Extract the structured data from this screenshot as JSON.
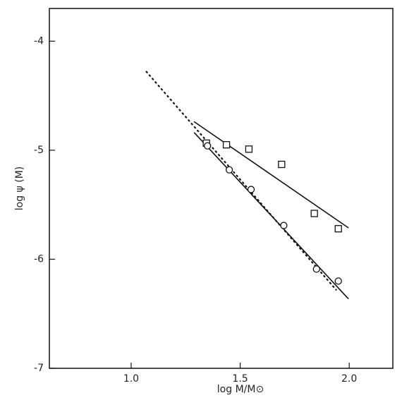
{
  "chart_data": {
    "type": "scatter",
    "x_label": "log M/M⊙",
    "y_label": "log ψ (M)",
    "xlim": [
      0.625,
      2.2
    ],
    "ylim": [
      -7,
      -3.7
    ],
    "xticks": [
      {
        "value": 1,
        "label": "1.0"
      },
      1.5,
      {
        "value": 2,
        "label": "2.0"
      }
    ],
    "yticks": [
      -4,
      -5,
      -6,
      -7
    ],
    "color": "#111111",
    "series": [
      {
        "marker": "square",
        "x": [
          1.345,
          1.437,
          1.54,
          1.69,
          1.84,
          1.95
        ],
        "values": [
          -4.935,
          -4.95,
          -4.99,
          -5.13,
          -5.58,
          -5.72
        ]
      },
      {
        "marker": "circle",
        "x": [
          1.35,
          1.45,
          1.55,
          1.7,
          1.85,
          1.95
        ],
        "values": [
          -4.96,
          -5.18,
          -5.36,
          -5.69,
          -6.09,
          -6.2
        ]
      }
    ],
    "lines": [
      {
        "style": "solid",
        "x": [
          1.29,
          1.995
        ],
        "values": [
          -4.74,
          -5.71
        ]
      },
      {
        "style": "solid",
        "x": [
          1.29,
          1.995
        ],
        "values": [
          -4.84,
          -6.36
        ]
      },
      {
        "style": "dotted",
        "x": [
          1.07,
          1.94
        ],
        "values": [
          -4.28,
          -6.28
        ]
      }
    ]
  }
}
